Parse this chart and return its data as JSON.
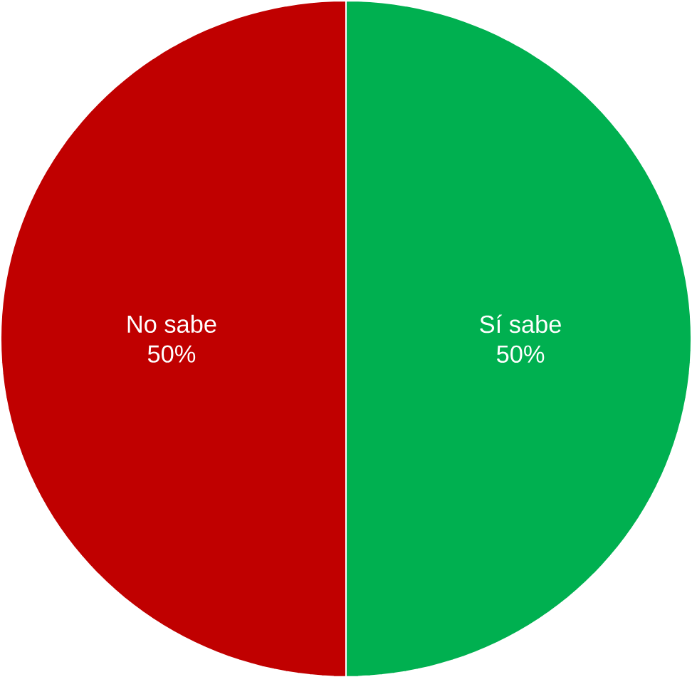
{
  "chart_data": {
    "type": "pie",
    "categories": [
      "No sabe",
      "Sí sabe"
    ],
    "values": [
      50,
      50
    ],
    "colors": [
      "#c00000",
      "#00b050"
    ],
    "value_labels": [
      "50%",
      "50%"
    ]
  }
}
